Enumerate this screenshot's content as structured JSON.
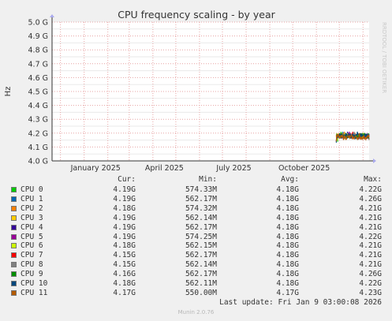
{
  "chart_data": {
    "type": "line",
    "title": "CPU frequency scaling - by year",
    "ylabel": "Hz",
    "watermark": "RRDTOOL / TOBI OETIKER",
    "yticks": [
      "4.0 G",
      "4.1 G",
      "4.2 G",
      "4.3 G",
      "4.4 G",
      "4.5 G",
      "4.6 G",
      "4.7 G",
      "4.8 G",
      "4.9 G",
      "5.0 G"
    ],
    "ylim": [
      4.0,
      5.0
    ],
    "xticks": [
      "January 2025",
      "April 2025",
      "July 2025",
      "October 2025"
    ],
    "xrange": [
      "2024-11-20",
      "2026-01-09"
    ],
    "xtick_dates": [
      "2025-01-01",
      "2025-04-01",
      "2025-07-01",
      "2025-10-01"
    ],
    "data_start": "2025-11-27",
    "data_end": "2026-01-09",
    "grid": true,
    "series": [
      {
        "name": "CPU 0",
        "color": "#00cc00",
        "cur": "4.19G",
        "min": "574.33M",
        "avg": "4.18G",
        "max": "4.22G"
      },
      {
        "name": "CPU 1",
        "color": "#0066b3",
        "cur": "4.19G",
        "min": "562.17M",
        "avg": "4.18G",
        "max": "4.26G"
      },
      {
        "name": "CPU 2",
        "color": "#ff8000",
        "cur": "4.18G",
        "min": "574.32M",
        "avg": "4.18G",
        "max": "4.21G"
      },
      {
        "name": "CPU 3",
        "color": "#ffcc00",
        "cur": "4.19G",
        "min": "562.14M",
        "avg": "4.18G",
        "max": "4.21G"
      },
      {
        "name": "CPU 4",
        "color": "#330099",
        "cur": "4.19G",
        "min": "562.17M",
        "avg": "4.18G",
        "max": "4.21G"
      },
      {
        "name": "CPU 5",
        "color": "#990099",
        "cur": "4.19G",
        "min": "574.25M",
        "avg": "4.18G",
        "max": "4.22G"
      },
      {
        "name": "CPU 6",
        "color": "#ccff00",
        "cur": "4.18G",
        "min": "562.15M",
        "avg": "4.18G",
        "max": "4.21G"
      },
      {
        "name": "CPU 7",
        "color": "#ff0000",
        "cur": "4.15G",
        "min": "562.17M",
        "avg": "4.18G",
        "max": "4.21G"
      },
      {
        "name": "CPU 8",
        "color": "#808080",
        "cur": "4.15G",
        "min": "562.14M",
        "avg": "4.18G",
        "max": "4.21G"
      },
      {
        "name": "CPU 9",
        "color": "#008f00",
        "cur": "4.16G",
        "min": "562.17M",
        "avg": "4.18G",
        "max": "4.26G"
      },
      {
        "name": "CPU 10",
        "color": "#00487d",
        "cur": "4.18G",
        "min": "562.11M",
        "avg": "4.18G",
        "max": "4.22G"
      },
      {
        "name": "CPU 11",
        "color": "#b35a00",
        "cur": "4.17G",
        "min": "550.00M",
        "avg": "4.17G",
        "max": "4.23G"
      }
    ]
  },
  "legend": {
    "headers": {
      "cur": "Cur:",
      "min": "Min:",
      "avg": "Avg:",
      "max": "Max:"
    }
  },
  "footer": {
    "last_update": "Last update: Fri Jan  9 03:00:08 2026",
    "munin": "Munin 2.0.76"
  }
}
